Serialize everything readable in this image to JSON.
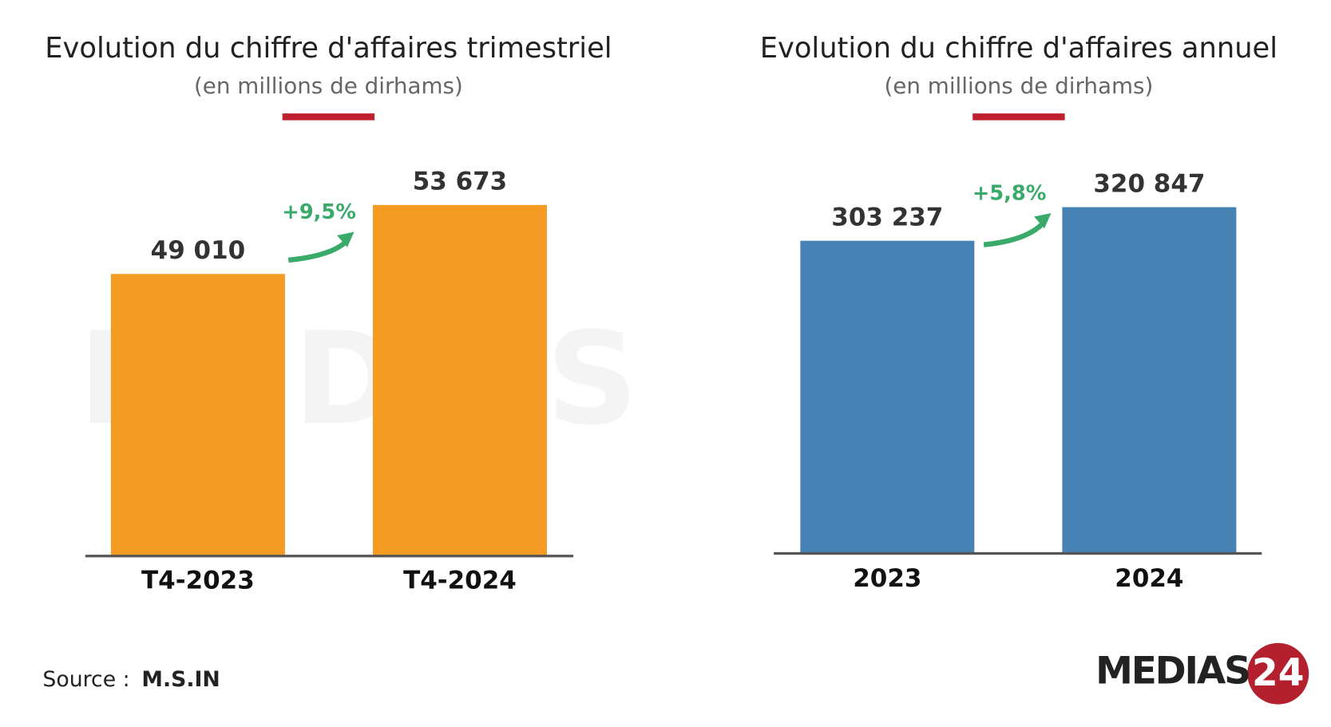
{
  "chart_data": [
    {
      "type": "bar",
      "title": "Evolution du chiffre d'affaires trimestriel",
      "subtitle": "(en millions de dirhams)",
      "categories": [
        "T4-2023",
        "T4-2024"
      ],
      "values": [
        49010,
        53673
      ],
      "value_labels": [
        "49 010",
        "53 673"
      ],
      "color": "#f59a23",
      "ylim": [
        30000,
        56000
      ],
      "annotation": "+9,5%",
      "annotation_color": "#3aaa6a"
    },
    {
      "type": "bar",
      "title": "Evolution du chiffre d'affaires annuel",
      "subtitle": "(en millions de dirhams)",
      "categories": [
        "2023",
        "2024"
      ],
      "values": [
        303237,
        320847
      ],
      "value_labels": [
        "303 237",
        "320 847"
      ],
      "color": "#4682b4",
      "ylim": [
        140000,
        340000
      ],
      "annotation": "+5,8%",
      "annotation_color": "#3aaa6a"
    }
  ],
  "source_label": "Source :",
  "source": "M.S.IN",
  "logo": "MEDIAS",
  "logo_suffix": "24"
}
